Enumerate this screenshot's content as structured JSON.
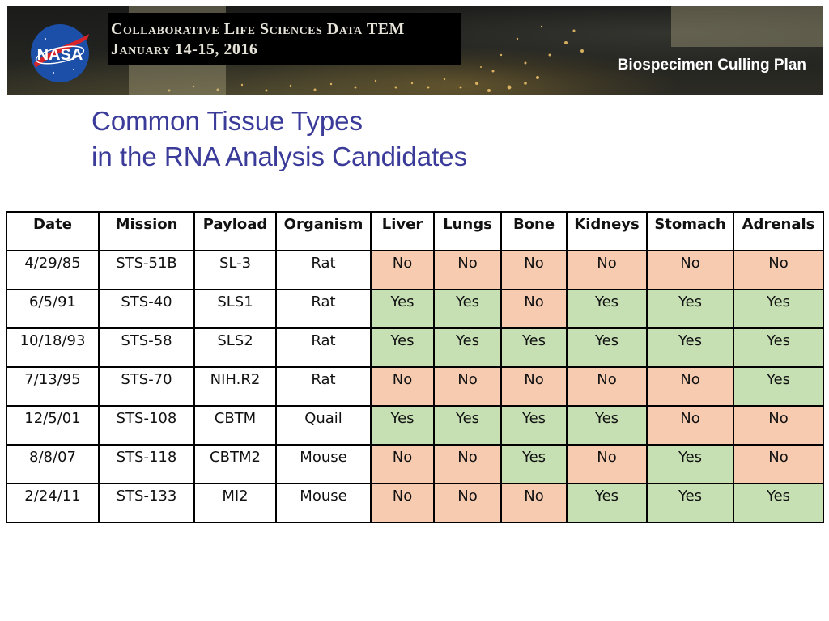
{
  "banner": {
    "title_line1": "Collaborative Life Sciences Data TEM",
    "title_line2": "January 14-15, 2016",
    "plan_title": "Biospecimen Culling Plan",
    "logo_text": "NASA"
  },
  "heading": {
    "line1": "Common Tissue Types",
    "line2": "in the RNA Analysis Candidates"
  },
  "table": {
    "headers": [
      "Date",
      "Mission",
      "Payload",
      "Organism",
      "Liver",
      "Lungs",
      "Bone",
      "Kidneys",
      "Stomach",
      "Adrenals"
    ],
    "rows": [
      [
        "4/29/85",
        "STS-51B",
        "SL-3",
        "Rat",
        "No",
        "No",
        "No",
        "No",
        "No",
        "No"
      ],
      [
        "6/5/91",
        "STS-40",
        "SLS1",
        "Rat",
        "Yes",
        "Yes",
        "No",
        "Yes",
        "Yes",
        "Yes"
      ],
      [
        "10/18/93",
        "STS-58",
        "SLS2",
        "Rat",
        "Yes",
        "Yes",
        "Yes",
        "Yes",
        "Yes",
        "Yes"
      ],
      [
        "7/13/95",
        "STS-70",
        "NIH.R2",
        "Rat",
        "No",
        "No",
        "No",
        "No",
        "No",
        "Yes"
      ],
      [
        "12/5/01",
        "STS-108",
        "CBTM",
        "Quail",
        "Yes",
        "Yes",
        "Yes",
        "Yes",
        "No",
        "No"
      ],
      [
        "8/8/07",
        "STS-118",
        "CBTM2",
        "Mouse",
        "No",
        "No",
        "Yes",
        "No",
        "Yes",
        "No"
      ],
      [
        "2/24/11",
        "STS-133",
        "MI2",
        "Mouse",
        "No",
        "No",
        "No",
        "Yes",
        "Yes",
        "Yes"
      ]
    ]
  },
  "colors": {
    "yes_fill": "#c6e0b4",
    "no_fill": "#f6cbb0",
    "heading_color": "#3b3b9a"
  }
}
